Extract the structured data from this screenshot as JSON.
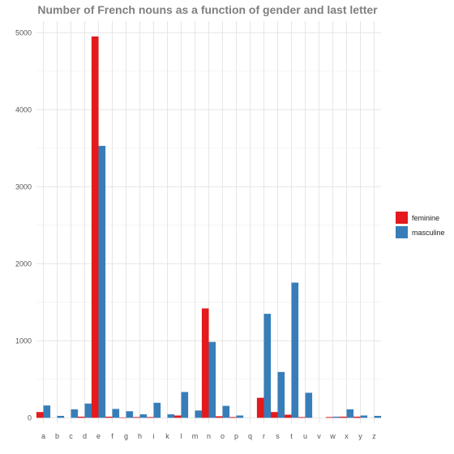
{
  "chart_data": {
    "type": "bar",
    "title": "Number of French nouns as a function of gender and last letter",
    "xlabel": "",
    "ylabel": "",
    "categories": [
      "a",
      "b",
      "c",
      "d",
      "e",
      "f",
      "g",
      "h",
      "i",
      "k",
      "l",
      "m",
      "n",
      "o",
      "p",
      "q",
      "r",
      "s",
      "t",
      "u",
      "v",
      "w",
      "x",
      "y",
      "z"
    ],
    "series": [
      {
        "name": "feminine",
        "color": "#e41a1c",
        "values": [
          75,
          0,
          0,
          15,
          4950,
          15,
          5,
          10,
          10,
          0,
          30,
          0,
          1420,
          20,
          10,
          0,
          260,
          75,
          40,
          10,
          0,
          10,
          15,
          15,
          0
        ]
      },
      {
        "name": "masculine",
        "color": "#377eb8",
        "values": [
          160,
          25,
          110,
          185,
          3530,
          115,
          85,
          45,
          195,
          45,
          335,
          95,
          985,
          155,
          30,
          0,
          1350,
          595,
          1755,
          325,
          0,
          15,
          110,
          30,
          25
        ]
      }
    ],
    "ylim": [
      -70,
      5150
    ],
    "yticks": [
      0,
      1000,
      2000,
      3000,
      4000,
      5000
    ],
    "grid": true,
    "legend_position": "right"
  }
}
